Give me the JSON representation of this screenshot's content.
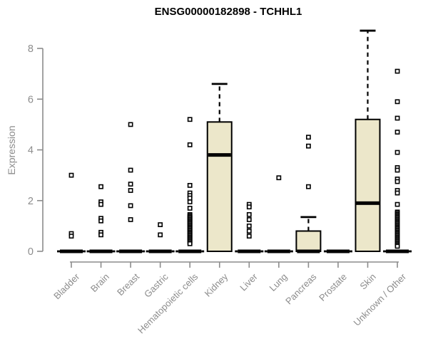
{
  "page": {
    "background": "#ffffff"
  },
  "chart_data": {
    "type": "boxplot",
    "title": "ENSG00000182898 - TCHHL1",
    "ylabel": "Expression",
    "xlabel": "",
    "ylim": [
      0,
      8.8
    ],
    "yticks": [
      0,
      2,
      4,
      6,
      8
    ],
    "grid": false,
    "legend": null,
    "colors": {
      "box_fill": "#ece7ca",
      "box_border": "#000000",
      "median": "#000000",
      "outlier_stroke": "#000000",
      "outlier_fill": "#ffffff",
      "axis": "#8c8c8c",
      "tick_label": "#8c8c8c",
      "title": "#000000"
    },
    "categories": [
      "Bladder",
      "Brain",
      "Breast",
      "Gastric",
      "Hematopoietic cells",
      "Kidney",
      "Liver",
      "Lung",
      "Pancreas",
      "Prostate",
      "Skin",
      "Unknown / Other"
    ],
    "series": [
      {
        "name": "Bladder",
        "q1": 0,
        "median": 0,
        "q3": 0,
        "whisker_low": 0,
        "whisker_high": 0,
        "outliers": [
          3.0,
          0.7,
          0.6
        ]
      },
      {
        "name": "Brain",
        "q1": 0,
        "median": 0,
        "q3": 0,
        "whisker_low": 0,
        "whisker_high": 0,
        "outliers": [
          2.55,
          1.95,
          1.85,
          1.3,
          1.2,
          0.75,
          0.65
        ]
      },
      {
        "name": "Breast",
        "q1": 0,
        "median": 0,
        "q3": 0,
        "whisker_low": 0,
        "whisker_high": 0,
        "outliers": [
          5.0,
          3.2,
          2.65,
          2.4,
          1.8,
          1.25
        ]
      },
      {
        "name": "Gastric",
        "q1": 0,
        "median": 0,
        "q3": 0,
        "whisker_low": 0,
        "whisker_high": 0,
        "outliers": [
          1.05,
          0.65
        ]
      },
      {
        "name": "Hematopoietic cells",
        "q1": 0,
        "median": 0,
        "q3": 0,
        "whisker_low": 0,
        "whisker_high": 0,
        "outliers": [
          5.2,
          4.2,
          2.6,
          2.3,
          2.2,
          2.1,
          1.95,
          1.7,
          1.45,
          1.4,
          1.35,
          1.3,
          1.25,
          1.2,
          1.15,
          1.1,
          1.05,
          1.0,
          0.95,
          0.9,
          0.85,
          0.8,
          0.75,
          0.7,
          0.65,
          0.6,
          0.55,
          0.5,
          0.45,
          0.4,
          0.35,
          0.3
        ]
      },
      {
        "name": "Kidney",
        "q1": 0,
        "median": 3.8,
        "q3": 5.1,
        "whisker_low": 0,
        "whisker_high": 6.6,
        "outliers": []
      },
      {
        "name": "Liver",
        "q1": 0,
        "median": 0,
        "q3": 0,
        "whisker_low": 0,
        "whisker_high": 0,
        "outliers": [
          1.85,
          1.75,
          1.45,
          1.25,
          1.0,
          0.8,
          0.6
        ]
      },
      {
        "name": "Lung",
        "q1": 0,
        "median": 0,
        "q3": 0,
        "whisker_low": 0,
        "whisker_high": 0,
        "outliers": [
          2.9
        ]
      },
      {
        "name": "Pancreas",
        "q1": 0,
        "median": 0,
        "q3": 0.8,
        "whisker_low": 0,
        "whisker_high": 1.35,
        "outliers": [
          4.5,
          4.15,
          2.55
        ]
      },
      {
        "name": "Prostate",
        "q1": 0,
        "median": 0,
        "q3": 0,
        "whisker_low": 0,
        "whisker_high": 0,
        "outliers": []
      },
      {
        "name": "Skin",
        "q1": 0,
        "median": 1.9,
        "q3": 5.2,
        "whisker_low": 0,
        "whisker_high": 8.7,
        "outliers": []
      },
      {
        "name": "Unknown / Other",
        "q1": 0,
        "median": 0,
        "q3": 0,
        "whisker_low": 0,
        "whisker_high": 0,
        "outliers": [
          7.1,
          5.9,
          5.25,
          4.7,
          3.9,
          3.3,
          3.2,
          2.85,
          2.75,
          2.4,
          2.3,
          1.85,
          1.55,
          1.5,
          1.45,
          1.4,
          1.35,
          1.3,
          1.25,
          1.2,
          1.15,
          1.1,
          1.05,
          1.0,
          0.95,
          0.9,
          0.85,
          0.8,
          0.75,
          0.7,
          0.65,
          0.6,
          0.55,
          0.5,
          0.45,
          0.4,
          0.35,
          0.3,
          0.25,
          0.2
        ]
      }
    ]
  }
}
